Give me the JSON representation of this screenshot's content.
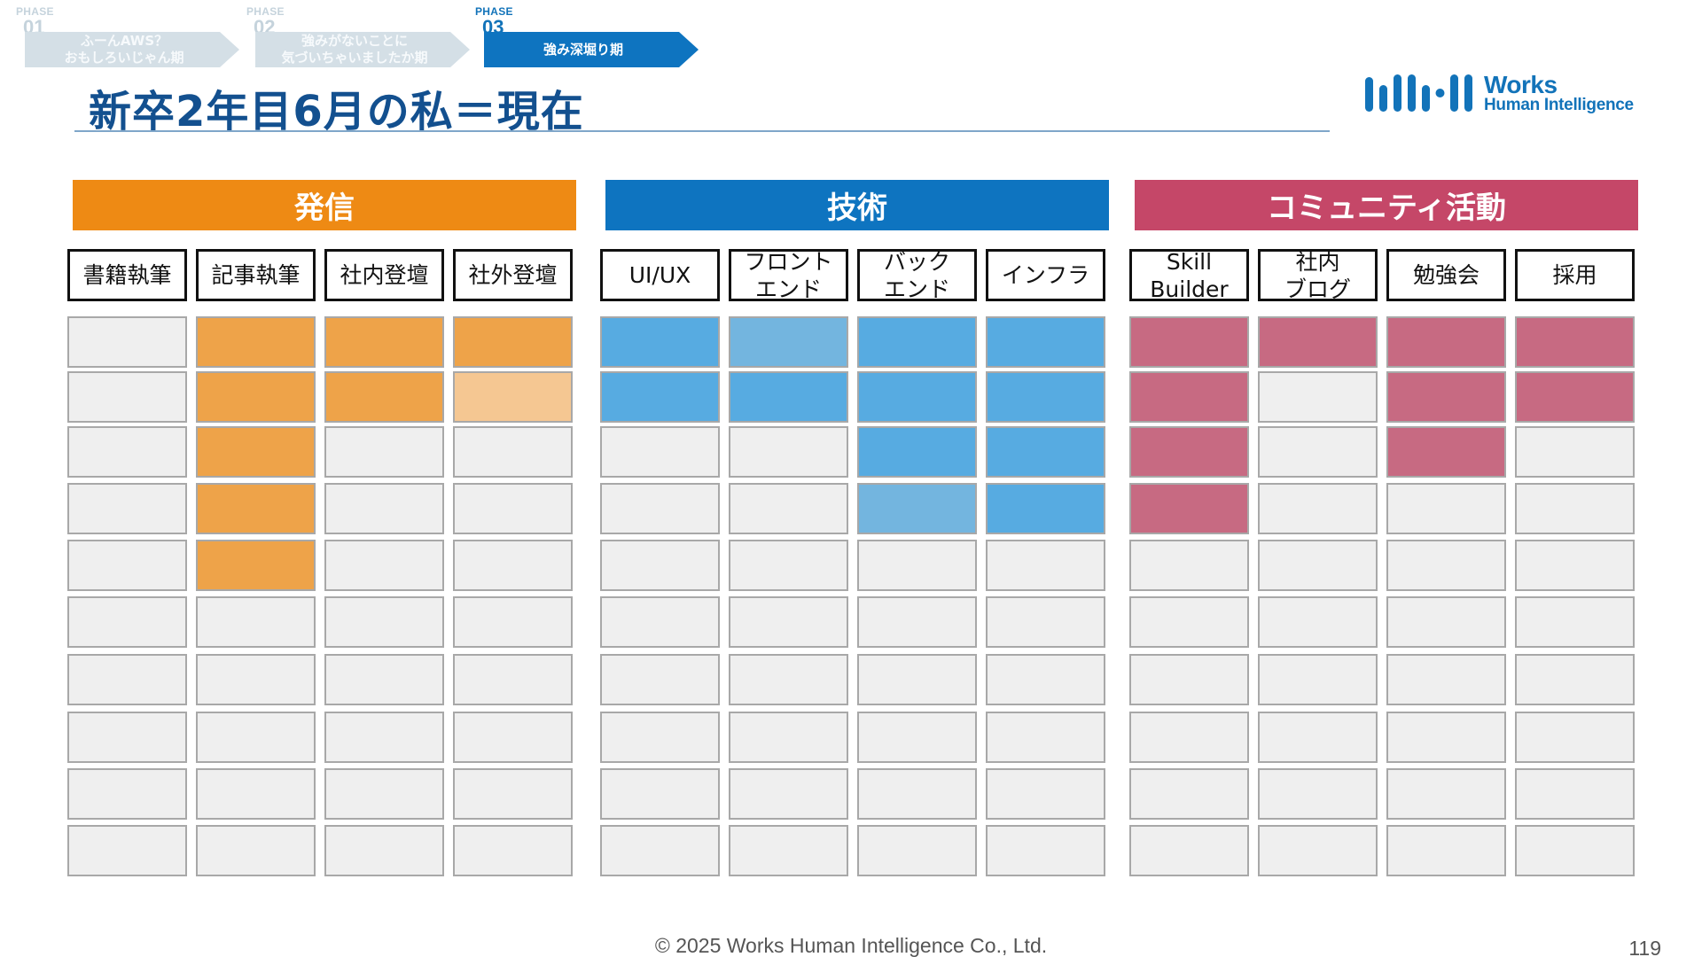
{
  "phases": [
    {
      "tag": "PHASE",
      "num": "01",
      "label": "ふーんAWS？\nおもしろいじゃん期",
      "state": "inactive"
    },
    {
      "tag": "PHASE",
      "num": "02",
      "label": "強みがないことに\n気づいちゃいましたか期",
      "state": "inactive"
    },
    {
      "tag": "PHASE",
      "num": "03",
      "label": "強み深堀り期",
      "state": "active"
    }
  ],
  "title": "新卒2年目6月の私＝現在",
  "logo": {
    "line1": "Works",
    "line2": "Human Intelligence"
  },
  "colors": {
    "orange": "#ee8a14",
    "blue": "#0e74c0",
    "pink": "#c54768",
    "title": "#13508f"
  },
  "groups": [
    {
      "name": "発信",
      "color": "#ee8a14",
      "columns": [
        {
          "label": "書籍執筆",
          "filled": 0,
          "tones": []
        },
        {
          "label": "記事執筆",
          "filled": 5,
          "tones": [
            "orange",
            "orange",
            "orange",
            "orange",
            "orange"
          ]
        },
        {
          "label": "社内登壇",
          "filled": 2,
          "tones": [
            "orange",
            "orange"
          ]
        },
        {
          "label": "社外登壇",
          "filled": 2,
          "tones": [
            "orange",
            "orange-light"
          ]
        }
      ]
    },
    {
      "name": "技術",
      "color": "#0e74c0",
      "columns": [
        {
          "label": "UI/UX",
          "filled": 2,
          "tones": [
            "blue",
            "blue"
          ]
        },
        {
          "label": "フロント\nエンド",
          "filled": 2,
          "tones": [
            "blue-light",
            "blue"
          ]
        },
        {
          "label": "バック\nエンド",
          "filled": 4,
          "tones": [
            "blue",
            "blue",
            "blue",
            "blue-light"
          ]
        },
        {
          "label": "インフラ",
          "filled": 4,
          "tones": [
            "blue",
            "blue",
            "blue",
            "blue"
          ]
        }
      ]
    },
    {
      "name": "コミュニティ活動",
      "color": "#c54768",
      "columns": [
        {
          "label": "Skill\nBuilder",
          "filled": 4,
          "tones": [
            "pink",
            "pink",
            "pink",
            "pink"
          ]
        },
        {
          "label": "社内\nブログ",
          "filled": 1,
          "tones": [
            "pink"
          ]
        },
        {
          "label": "勉強会",
          "filled": 3,
          "tones": [
            "pink",
            "pink",
            "pink"
          ]
        },
        {
          "label": "採用",
          "filled": 2,
          "tones": [
            "pink",
            "pink"
          ]
        }
      ]
    }
  ],
  "rows_total": 10,
  "footer": "© 2025 Works Human Intelligence Co., Ltd.",
  "page_number": "119"
}
